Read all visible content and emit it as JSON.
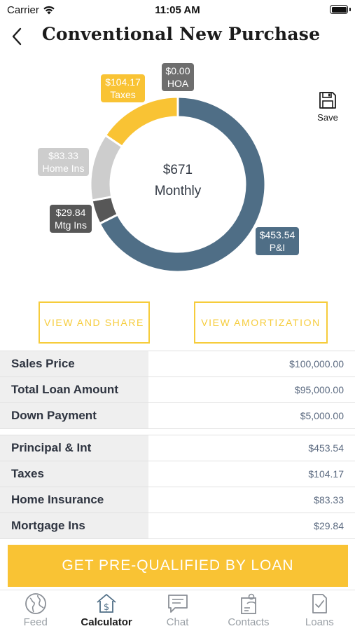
{
  "status_bar": {
    "carrier": "Carrier",
    "time": "11:05 AM"
  },
  "nav": {
    "title": "Conventional New Purchase"
  },
  "save": {
    "label": "Save"
  },
  "chart_data": {
    "type": "pie",
    "center_amount": "$671",
    "center_label": "Monthly",
    "slices": [
      {
        "label": "P&I",
        "amount": "$453.54",
        "value": 453.54,
        "color": "#4f6e86"
      },
      {
        "label": "Mtg Ins",
        "amount": "$29.84",
        "value": 29.84,
        "color": "#575757"
      },
      {
        "label": "Home Ins",
        "amount": "$83.33",
        "value": 83.33,
        "color": "#cdcdcd"
      },
      {
        "label": "Taxes",
        "amount": "$104.17",
        "value": 104.17,
        "color": "#f9c334"
      },
      {
        "label": "HOA",
        "amount": "$0.00",
        "value": 0.0,
        "color": "#6e6e6e"
      }
    ]
  },
  "buttons": {
    "view_share": "VIEW AND SHARE",
    "view_amortization": "VIEW AMORTIZATION"
  },
  "loan_table": [
    {
      "label": "Sales Price",
      "value": "$100,000.00"
    },
    {
      "label": "Total Loan Amount",
      "value": "$95,000.00"
    },
    {
      "label": "Down Payment",
      "value": "$5,000.00"
    }
  ],
  "payment_table": [
    {
      "label": "Principal & Int",
      "value": "$453.54"
    },
    {
      "label": "Taxes",
      "value": "$104.17"
    },
    {
      "label": "Home Insurance",
      "value": "$83.33"
    },
    {
      "label": "Mortgage Ins",
      "value": "$29.84"
    }
  ],
  "cta": {
    "label": "GET PRE-QUALIFIED BY LOAN"
  },
  "tabs": [
    {
      "label": "Feed",
      "icon": "globe-icon"
    },
    {
      "label": "Calculator",
      "icon": "calculator-house-icon",
      "active": true
    },
    {
      "label": "Chat",
      "icon": "chat-icon"
    },
    {
      "label": "Contacts",
      "icon": "contacts-icon"
    },
    {
      "label": "Loans",
      "icon": "loans-icon"
    }
  ]
}
